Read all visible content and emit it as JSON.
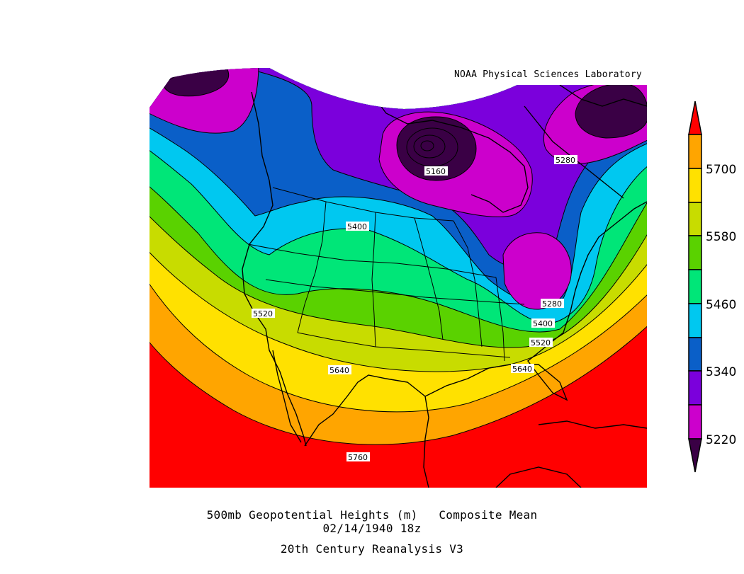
{
  "credit": "NOAA Physical Sciences Laboratory",
  "title": {
    "line1": "500mb Geopotential Heights (m)   Composite Mean",
    "line2": "02/14/1940 18z",
    "line3": "20th Century Reanalysis V3"
  },
  "colorbar": {
    "ticks": [
      "5220",
      "5340",
      "5460",
      "5580",
      "5700"
    ],
    "colors": {
      "below_5160": "#3a0045",
      "5160_5220": "#cc00cc",
      "5220_5280": "#cc00cc",
      "5280_5340": "#7b00dc",
      "5340_5400": "#0a5fc8",
      "5400_5460": "#00c8f0",
      "5460_5520": "#00e678",
      "5520_5580": "#5ad200",
      "5580_5640": "#c8dc00",
      "5640_5700": "#ffe100",
      "5700_5760": "#ffa500",
      "above_5760": "#ff0000"
    }
  },
  "contour_labels": [
    "5160",
    "5280",
    "5400",
    "5520",
    "5280",
    "5400",
    "5520",
    "5640",
    "5640",
    "5760"
  ]
}
